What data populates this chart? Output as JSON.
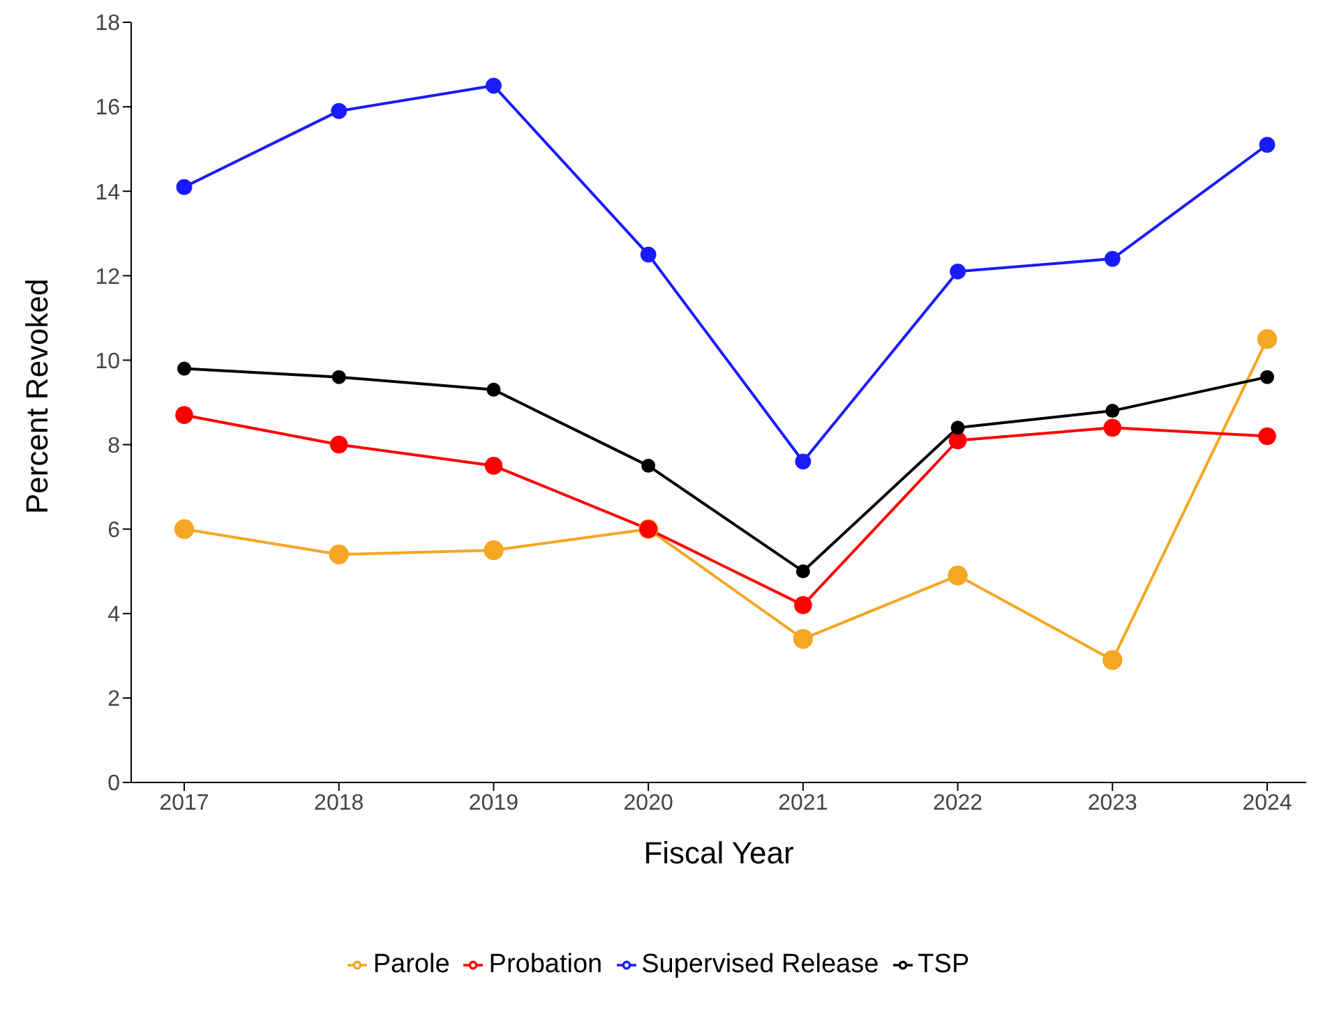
{
  "chart_data": {
    "type": "line",
    "xlabel": "Fiscal Year",
    "ylabel": "Percent Revoked",
    "categories": [
      "2017",
      "2018",
      "2019",
      "2020",
      "2021",
      "2022",
      "2023",
      "2024"
    ],
    "series": [
      {
        "name": "Parole",
        "color": "#f5a623",
        "values": [
          6.0,
          5.4,
          5.5,
          6.0,
          3.4,
          4.9,
          2.9,
          10.5
        ]
      },
      {
        "name": "Probation",
        "color": "#ff0000",
        "values": [
          8.7,
          8.0,
          7.5,
          6.0,
          4.2,
          8.1,
          8.4,
          8.2
        ]
      },
      {
        "name": "Supervised Release",
        "color": "#1a1aff",
        "values": [
          14.1,
          15.9,
          16.5,
          12.5,
          7.6,
          12.1,
          12.4,
          15.1
        ]
      },
      {
        "name": "TSP",
        "color": "#000000",
        "values": [
          9.8,
          9.6,
          9.3,
          7.5,
          5.0,
          8.4,
          8.8,
          9.6
        ]
      }
    ],
    "ylim": [
      0,
      18
    ],
    "yticks": [
      0,
      2,
      4,
      6,
      8,
      10,
      12,
      14,
      16,
      18
    ],
    "grid": false,
    "legend": "bottom",
    "marker": "circle",
    "line_style": "solid"
  }
}
